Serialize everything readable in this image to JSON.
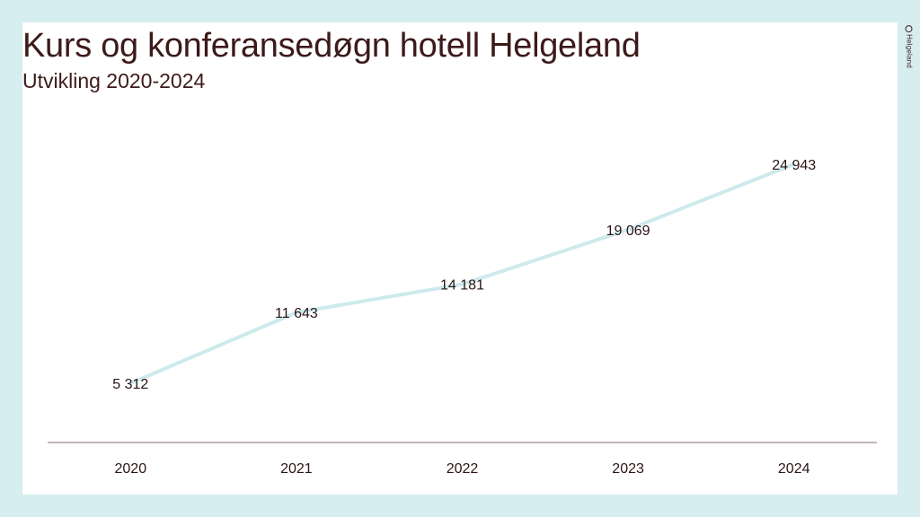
{
  "title": "Kurs og konferansedøgn hotell Helgeland",
  "subtitle": "Utvikling 2020-2024",
  "logo": {
    "text": "Helgeland"
  },
  "colors": {
    "background": "#d6eef0",
    "text": "#3d1a1a",
    "line": "#cdeaec",
    "axis": "#8a6f6f"
  },
  "chart_data": {
    "type": "line",
    "title": "Kurs og konferansedøgn hotell Helgeland",
    "subtitle": "Utvikling 2020-2024",
    "xlabel": "",
    "ylabel": "",
    "categories": [
      "2020",
      "2021",
      "2022",
      "2023",
      "2024"
    ],
    "series": [
      {
        "values": [
          5312,
          11643,
          14181,
          19069,
          24943
        ],
        "labels": [
          "5 312",
          "11 643",
          "14 181",
          "19 069",
          "24 943"
        ]
      }
    ],
    "ylim": [
      0,
      30000
    ],
    "grid": false,
    "legend": "none"
  }
}
